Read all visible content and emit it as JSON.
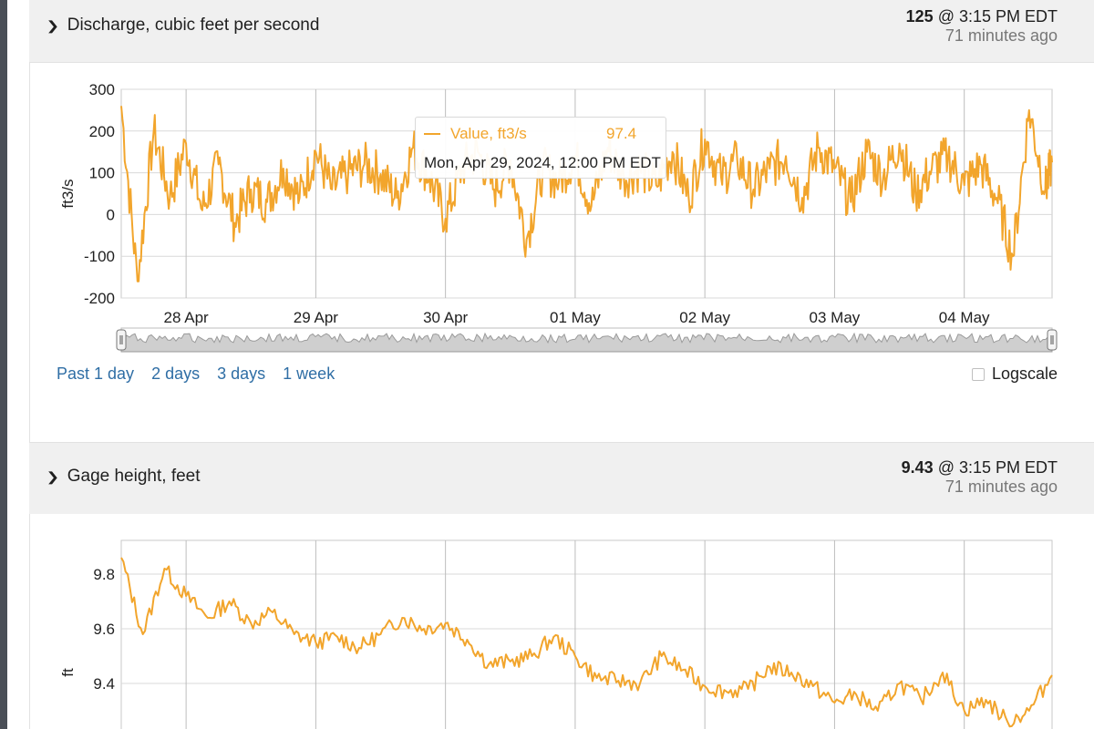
{
  "panels": [
    {
      "header": {
        "title": "Discharge, cubic feet per second",
        "latest_value": "125",
        "latest_time": "@ 3:15 PM EDT",
        "ago": "71 minutes ago"
      },
      "tooltip": {
        "series": "Value, ft3/s",
        "value": "97.4",
        "timestamp": "Mon, Apr 29, 2024, 12:00 PM EDT"
      },
      "range_links": [
        "Past 1 day",
        "2 days",
        "3 days",
        "1 week"
      ],
      "logscale_label": "Logscale"
    },
    {
      "header": {
        "title": "Gage height, feet",
        "latest_value": "9.43",
        "latest_time": "@ 3:15 PM EDT",
        "ago": "71 minutes ago"
      }
    }
  ],
  "colors": {
    "series": "#f2a52c",
    "grid": "#d9d9d9",
    "header_bg": "#f0f0f0",
    "link": "#2f6ea5"
  },
  "chart_data": [
    {
      "type": "line",
      "title": "",
      "ylabel": "ft3/s",
      "xlabel": "",
      "ylim": [
        -200,
        300
      ],
      "y_ticks": [
        300,
        200,
        100,
        0,
        -100,
        -200
      ],
      "x_ticks": [
        "28 Apr",
        "29 Apr",
        "30 Apr",
        "01 May",
        "02 May",
        "03 May",
        "04 May"
      ],
      "xlim": [
        "2024-04-27T12:00",
        "2024-05-04T16:15"
      ],
      "grid": true,
      "series": [
        {
          "name": "Value, ft3/s",
          "x": [
            "2024-04-27T12:00",
            "2024-04-27T15:00",
            "2024-04-27T18:00",
            "2024-04-27T21:00",
            "2024-04-28T00:00",
            "2024-04-28T03:00",
            "2024-04-28T06:00",
            "2024-04-28T09:00",
            "2024-04-28T12:00",
            "2024-04-28T15:00",
            "2024-04-28T18:00",
            "2024-04-28T21:00",
            "2024-04-29T00:00",
            "2024-04-29T03:00",
            "2024-04-29T06:00",
            "2024-04-29T09:00",
            "2024-04-29T12:00",
            "2024-04-29T15:00",
            "2024-04-29T18:00",
            "2024-04-29T21:00",
            "2024-04-30T00:00",
            "2024-04-30T03:00",
            "2024-04-30T06:00",
            "2024-04-30T09:00",
            "2024-04-30T12:00",
            "2024-04-30T15:00",
            "2024-04-30T18:00",
            "2024-04-30T21:00",
            "2024-05-01T00:00",
            "2024-05-01T03:00",
            "2024-05-01T06:00",
            "2024-05-01T09:00",
            "2024-05-01T12:00",
            "2024-05-01T15:00",
            "2024-05-01T18:00",
            "2024-05-01T21:00",
            "2024-05-02T00:00",
            "2024-05-02T03:00",
            "2024-05-02T06:00",
            "2024-05-02T09:00",
            "2024-05-02T12:00",
            "2024-05-02T15:00",
            "2024-05-02T18:00",
            "2024-05-02T21:00",
            "2024-05-03T00:00",
            "2024-05-03T03:00",
            "2024-05-03T06:00",
            "2024-05-03T09:00",
            "2024-05-03T12:00",
            "2024-05-03T15:00",
            "2024-05-03T18:00",
            "2024-05-03T21:00",
            "2024-05-04T00:00",
            "2024-05-04T03:00",
            "2024-05-04T06:00",
            "2024-05-04T09:00",
            "2024-05-04T12:00",
            "2024-05-04T15:00",
            "2024-05-04T16:15"
          ],
          "y": [
            260,
            -160,
            200,
            40,
            170,
            10,
            120,
            -20,
            60,
            30,
            110,
            40,
            150,
            60,
            100,
            120,
            97,
            40,
            160,
            90,
            -10,
            110,
            150,
            60,
            130,
            -60,
            110,
            80,
            140,
            20,
            160,
            90,
            110,
            70,
            150,
            40,
            180,
            90,
            130,
            60,
            110,
            140,
            40,
            160,
            110,
            30,
            150,
            90,
            170,
            50,
            110,
            140,
            70,
            120,
            40,
            -100,
            250,
            60,
            125
          ]
        }
      ]
    },
    {
      "type": "line",
      "title": "",
      "ylabel": "ft",
      "xlabel": "",
      "ylim": [
        9.2,
        9.9
      ],
      "y_ticks": [
        9.8,
        9.6,
        9.4
      ],
      "xlim": [
        "2024-04-27T12:00",
        "2024-05-04T16:15"
      ],
      "grid": true,
      "series": [
        {
          "name": "",
          "x": [
            "2024-04-27T12:00",
            "2024-04-27T16:00",
            "2024-04-27T20:00",
            "2024-04-28T00:00",
            "2024-04-28T04:00",
            "2024-04-28T08:00",
            "2024-04-28T12:00",
            "2024-04-28T16:00",
            "2024-04-28T20:00",
            "2024-04-29T00:00",
            "2024-04-29T04:00",
            "2024-04-29T08:00",
            "2024-04-29T12:00",
            "2024-04-29T16:00",
            "2024-04-29T20:00",
            "2024-04-30T00:00",
            "2024-04-30T04:00",
            "2024-04-30T08:00",
            "2024-04-30T12:00",
            "2024-04-30T16:00",
            "2024-04-30T20:00",
            "2024-05-01T00:00",
            "2024-05-01T04:00",
            "2024-05-01T08:00",
            "2024-05-01T12:00",
            "2024-05-01T16:00",
            "2024-05-01T20:00",
            "2024-05-02T00:00",
            "2024-05-02T04:00",
            "2024-05-02T08:00",
            "2024-05-02T12:00",
            "2024-05-02T16:00",
            "2024-05-02T20:00",
            "2024-05-03T00:00",
            "2024-05-03T04:00",
            "2024-05-03T08:00",
            "2024-05-03T12:00",
            "2024-05-03T16:00",
            "2024-05-03T20:00",
            "2024-05-04T00:00",
            "2024-05-04T04:00",
            "2024-05-04T08:00",
            "2024-05-04T12:00",
            "2024-05-04T16:15"
          ],
          "y": [
            9.86,
            9.58,
            9.82,
            9.72,
            9.64,
            9.7,
            9.62,
            9.66,
            9.58,
            9.55,
            9.57,
            9.53,
            9.58,
            9.64,
            9.6,
            9.62,
            9.56,
            9.47,
            9.48,
            9.5,
            9.57,
            9.5,
            9.42,
            9.41,
            9.4,
            9.5,
            9.45,
            9.39,
            9.37,
            9.38,
            9.46,
            9.44,
            9.39,
            9.33,
            9.36,
            9.3,
            9.4,
            9.34,
            9.44,
            9.3,
            9.34,
            9.26,
            9.3,
            9.43
          ]
        }
      ]
    }
  ]
}
